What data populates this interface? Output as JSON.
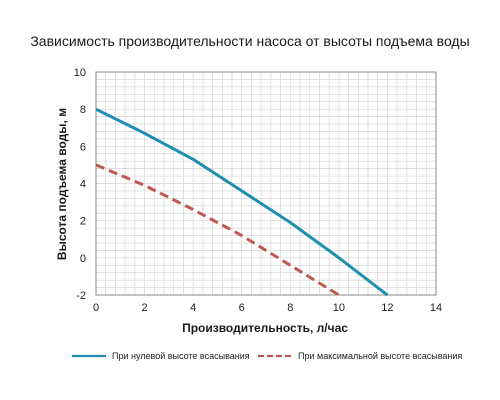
{
  "chart_data": {
    "type": "line",
    "title": "Зависимость производительности насоса от высоты подъема воды",
    "xlabel": "Производительность, л/час",
    "ylabel": "Высота подъема воды, м",
    "xlim": [
      0,
      14
    ],
    "ylim": [
      -2,
      10
    ],
    "xticks": [
      0,
      2,
      4,
      6,
      8,
      10,
      12,
      14
    ],
    "yticks": [
      -2,
      0,
      2,
      4,
      6,
      8,
      10
    ],
    "grid": true,
    "legend_position": "bottom",
    "series": [
      {
        "name": "При нулевой высоте всасывания",
        "color": "#1f8fb0",
        "style": "solid",
        "x": [
          0,
          2,
          4,
          6,
          8,
          10,
          12
        ],
        "y": [
          8,
          6.7,
          5.3,
          3.6,
          1.9,
          0,
          -2
        ]
      },
      {
        "name": "При максимальной высоте всасывания",
        "color": "#c0594f",
        "style": "dashed",
        "x": [
          0,
          2,
          4,
          6,
          8,
          10
        ],
        "y": [
          5,
          3.9,
          2.6,
          1.2,
          -0.4,
          -2
        ]
      }
    ]
  }
}
